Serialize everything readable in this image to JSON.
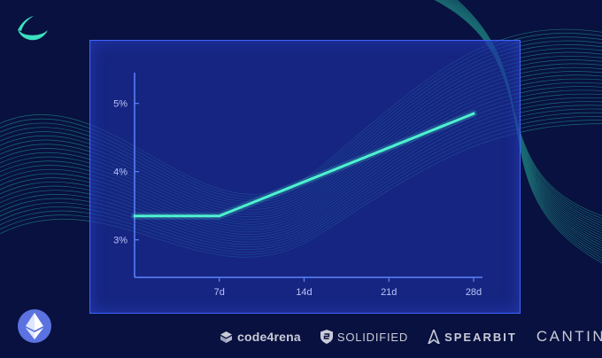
{
  "chart_data": {
    "type": "line",
    "x": [
      0,
      7,
      14,
      21,
      28
    ],
    "series": [
      {
        "values": [
          3.35,
          3.35,
          3.85,
          4.35,
          4.85
        ]
      }
    ],
    "x_tick_labels": [
      "7d",
      "14d",
      "21d",
      "28d"
    ],
    "y_tick_labels": [
      "5%",
      "4%",
      "3%"
    ],
    "y_ticks": [
      5,
      4,
      3
    ],
    "x_ticks": [
      7,
      14,
      21,
      28
    ],
    "xlim": [
      0,
      28
    ],
    "ylim": [
      2.45,
      5.45
    ],
    "grid": false,
    "colors": {
      "line": "#4df2cf",
      "axis": "#5a84ff",
      "panel_border": "#3f64ff"
    }
  },
  "partners": {
    "code4rena": "code4rena",
    "solidified": "SOLIDIFIED",
    "spearbit": "SPEARBIT",
    "cantina": "CANTINA"
  },
  "icons": {
    "logo": "leaf-wave-logo-icon",
    "ethereum": "ethereum-icon"
  }
}
